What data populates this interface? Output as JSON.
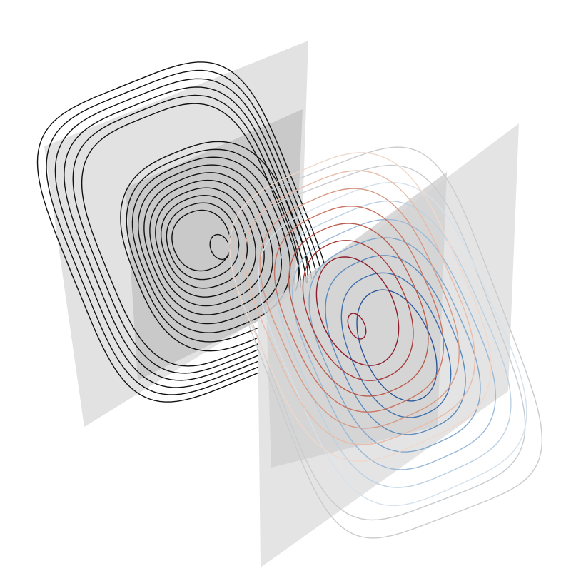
{
  "figure": {
    "background_color": "#ffffff",
    "panels": [
      {
        "name": "left-contour-panel",
        "palette": "monochrome",
        "outer_plane_color": "#e2e2e2",
        "inner_plane_color": "#c9c9c9",
        "line_color": "#111111",
        "outer_loop_count": 6,
        "inner_loop_count": 10,
        "center_marker": true
      },
      {
        "name": "right-contour-panel",
        "palette": "diverging-red-blue",
        "outer_plane_color": "#e4e4e4",
        "inner_plane_color": "#d2d2d2",
        "warm_colors": [
          "#f0d7cc",
          "#e8bca8",
          "#d69a86",
          "#c97462",
          "#b85c4c",
          "#a83b38",
          "#8c1d2c"
        ],
        "cool_colors": [
          "#d5e1ec",
          "#bcd1e3",
          "#9cbad7",
          "#7fa6cb",
          "#5b8bbd",
          "#3e70ad",
          "#2a5598"
        ],
        "neutral_color": "#c9cccf",
        "center_marker": true
      }
    ]
  }
}
